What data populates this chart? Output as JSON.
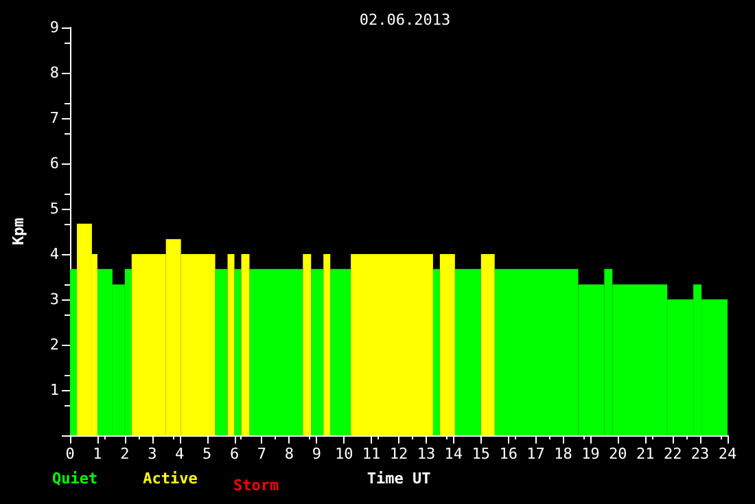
{
  "chart_data": {
    "type": "histogram",
    "title": "02.06.2013",
    "xlabel": "Time UT",
    "ylabel": "Kpm",
    "bins": [
      0,
      0.25,
      0.8,
      1.0,
      1.55,
      2.0,
      2.25,
      3.5,
      4.05,
      5.3,
      5.75,
      6.0,
      6.25,
      6.55,
      8.5,
      8.8,
      9.25,
      9.5,
      10.25,
      13.25,
      13.5,
      14.05,
      15.0,
      15.5,
      18.55,
      19.5,
      19.8,
      21.8,
      22.75,
      23.05,
      24
    ],
    "series": [
      {
        "name": "Quiet",
        "color": "#00ff00",
        "values": [
          3.67,
          null,
          null,
          3.67,
          3.33,
          3.67,
          null,
          null,
          null,
          3.67,
          null,
          3.67,
          null,
          3.67,
          null,
          3.67,
          null,
          3.67,
          null,
          3.67,
          null,
          3.67,
          null,
          3.67,
          3.33,
          3.67,
          3.33,
          3.0,
          3.33,
          3.0
        ]
      },
      {
        "name": "Active",
        "color": "#ffff00",
        "values": [
          null,
          4.67,
          4.0,
          null,
          null,
          null,
          4.0,
          4.33,
          4.0,
          null,
          4.0,
          null,
          4.0,
          null,
          4.0,
          null,
          4.0,
          null,
          4.0,
          null,
          4.0,
          null,
          4.0,
          null,
          null,
          null,
          null,
          null,
          null,
          null
        ]
      }
    ],
    "annotations": [
      "Storm"
    ],
    "xlim": [
      0,
      24
    ],
    "xticks": [
      0,
      1,
      2,
      3,
      4,
      5,
      6,
      7,
      8,
      9,
      10,
      11,
      12,
      13,
      14,
      15,
      16,
      17,
      18,
      19,
      20,
      21,
      22,
      23,
      24
    ],
    "ylim": [
      0,
      9
    ],
    "yticks": [
      {
        "value": 0,
        "label": null
      },
      1,
      2,
      3,
      4,
      5,
      6,
      7,
      8,
      9
    ],
    "grid": false,
    "legend": "bottom left"
  }
}
